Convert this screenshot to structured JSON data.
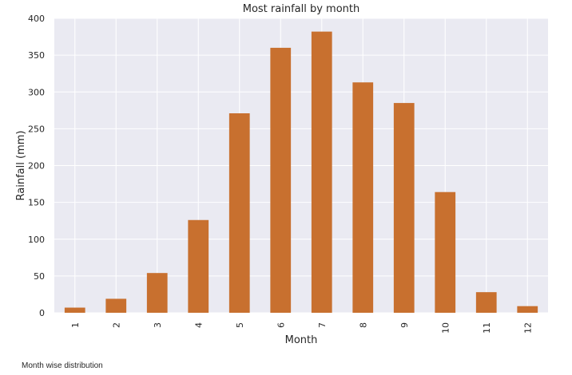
{
  "chart_data": {
    "type": "bar",
    "title": "Most rainfall by month",
    "xlabel": "Month",
    "ylabel": "Rainfall (mm)",
    "categories": [
      "1",
      "2",
      "3",
      "4",
      "5",
      "6",
      "7",
      "8",
      "9",
      "10",
      "11",
      "12"
    ],
    "values": [
      7,
      19,
      54,
      126,
      271,
      360,
      382,
      313,
      285,
      164,
      28,
      9
    ],
    "ylim": [
      0,
      400
    ],
    "yticks": [
      0,
      50,
      100,
      150,
      200,
      250,
      300,
      350,
      400
    ],
    "grid": true,
    "legend": "none",
    "colors": {
      "bar": "#c8702f",
      "plot_bg": "#eaeaf2",
      "grid": "#ffffff"
    }
  },
  "caption": "Month wise distribution"
}
